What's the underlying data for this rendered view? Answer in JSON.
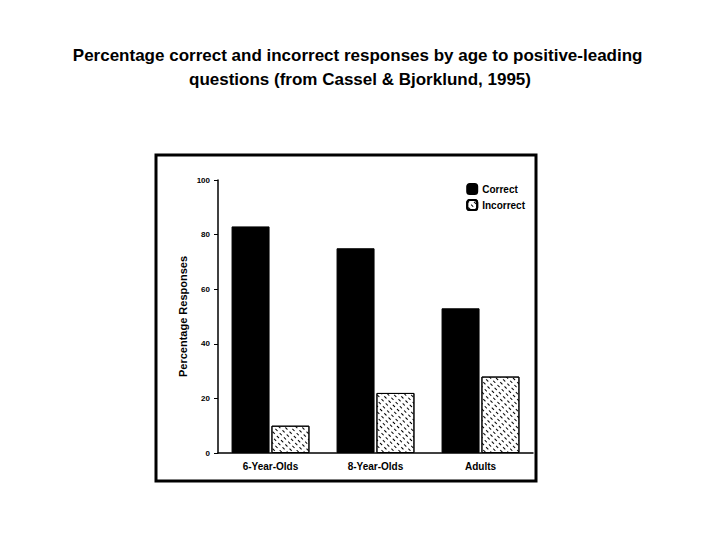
{
  "chart_data": {
    "type": "bar",
    "title": "Percentage correct and incorrect responses by age to positive-leading questions (from Cassel & Bjorklund, 1995)",
    "y_label": "Percentage Responses",
    "categories": [
      "6-Year-Olds",
      "8-Year-Olds",
      "Adults"
    ],
    "series": [
      {
        "name": "Correct",
        "color": "#000000",
        "values": [
          83,
          75,
          53
        ]
      },
      {
        "name": "Incorrect",
        "color": "#ffffff",
        "values": [
          10,
          22,
          28
        ]
      }
    ],
    "ylim": [
      0,
      100
    ],
    "yticks": [
      0,
      20,
      40,
      60,
      80,
      100
    ],
    "grid": false,
    "legend": "top-right"
  }
}
